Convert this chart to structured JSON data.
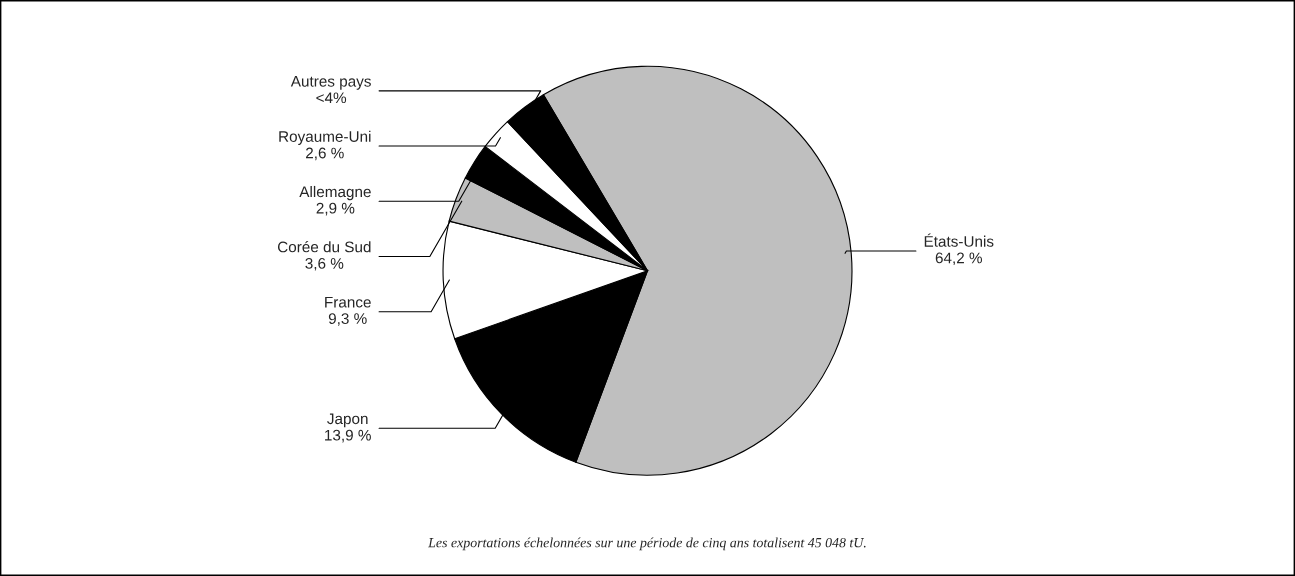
{
  "chart_data": {
    "type": "pie",
    "categories": [
      "États-Unis",
      "Japon",
      "France",
      "Corée du Sud",
      "Allemagne",
      "Royaume-Uni",
      "Autres pays"
    ],
    "values": [
      64.2,
      13.9,
      9.3,
      3.6,
      2.9,
      2.6,
      3.5
    ],
    "value_labels": [
      "64,2 %",
      "13,9 %",
      "9,3 %",
      "3,6 %",
      "2,9 %",
      "2,6 %",
      "<4%"
    ],
    "colors": [
      "#bfbfbf",
      "#000000",
      "#ffffff",
      "#bfbfbf",
      "#000000",
      "#ffffff",
      "#000000"
    ],
    "legend": false,
    "annotations": [
      "Les exportations échelonnées sur une période de cinq ans totalisent 45 048 tU."
    ]
  }
}
